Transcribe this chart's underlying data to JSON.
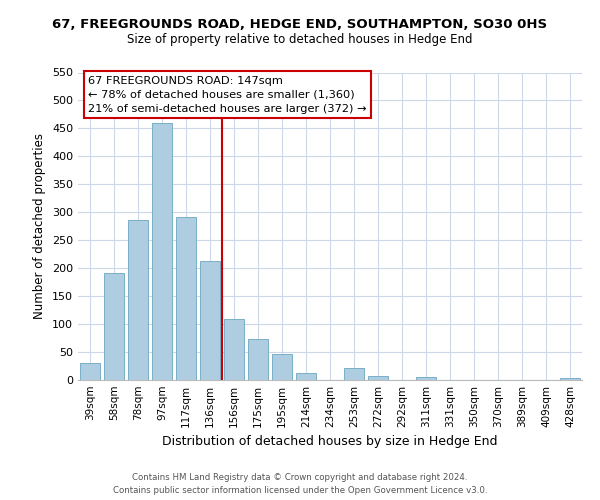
{
  "title": "67, FREEGROUNDS ROAD, HEDGE END, SOUTHAMPTON, SO30 0HS",
  "subtitle": "Size of property relative to detached houses in Hedge End",
  "xlabel": "Distribution of detached houses by size in Hedge End",
  "ylabel": "Number of detached properties",
  "bar_color": "#aecde0",
  "bar_edge_color": "#7aafc8",
  "categories": [
    "39sqm",
    "58sqm",
    "78sqm",
    "97sqm",
    "117sqm",
    "136sqm",
    "156sqm",
    "175sqm",
    "195sqm",
    "214sqm",
    "234sqm",
    "253sqm",
    "272sqm",
    "292sqm",
    "311sqm",
    "331sqm",
    "350sqm",
    "370sqm",
    "389sqm",
    "409sqm",
    "428sqm"
  ],
  "values": [
    30,
    192,
    287,
    460,
    292,
    213,
    110,
    74,
    47,
    13,
    0,
    22,
    8,
    0,
    5,
    0,
    0,
    0,
    0,
    0,
    3
  ],
  "ylim": [
    0,
    550
  ],
  "yticks": [
    0,
    50,
    100,
    150,
    200,
    250,
    300,
    350,
    400,
    450,
    500,
    550
  ],
  "vline_x": 5.5,
  "vline_color": "#cc0000",
  "annotation_title": "67 FREEGROUNDS ROAD: 147sqm",
  "annotation_line1": "← 78% of detached houses are smaller (1,360)",
  "annotation_line2": "21% of semi-detached houses are larger (372) →",
  "annotation_box_color": "#ffffff",
  "annotation_box_edge": "#cc0000",
  "footer1": "Contains HM Land Registry data © Crown copyright and database right 2024.",
  "footer2": "Contains public sector information licensed under the Open Government Licence v3.0.",
  "background_color": "#ffffff",
  "grid_color": "#ccd8e8"
}
